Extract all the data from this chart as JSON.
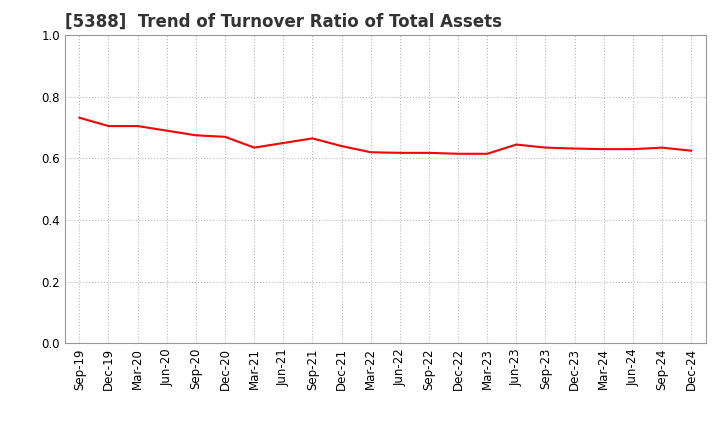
{
  "title": "[5388]  Trend of Turnover Ratio of Total Assets",
  "labels": [
    "Sep-19",
    "Dec-19",
    "Mar-20",
    "Jun-20",
    "Sep-20",
    "Dec-20",
    "Mar-21",
    "Jun-21",
    "Sep-21",
    "Dec-21",
    "Mar-22",
    "Jun-22",
    "Sep-22",
    "Dec-22",
    "Mar-23",
    "Jun-23",
    "Sep-23",
    "Dec-23",
    "Mar-24",
    "Jun-24",
    "Sep-24",
    "Dec-24"
  ],
  "values": [
    0.732,
    0.705,
    0.705,
    0.69,
    0.675,
    0.67,
    0.635,
    0.65,
    0.665,
    0.64,
    0.62,
    0.618,
    0.618,
    0.615,
    0.615,
    0.645,
    0.635,
    0.632,
    0.63,
    0.63,
    0.635,
    0.625
  ],
  "line_color": "#ff0000",
  "line_width": 1.5,
  "ylim": [
    0.0,
    1.0
  ],
  "yticks": [
    0.0,
    0.2,
    0.4,
    0.6,
    0.8,
    1.0
  ],
  "background_color": "#ffffff",
  "grid_color": "#bbbbbb",
  "title_fontsize": 12,
  "tick_fontsize": 8.5,
  "title_color": "#333333"
}
